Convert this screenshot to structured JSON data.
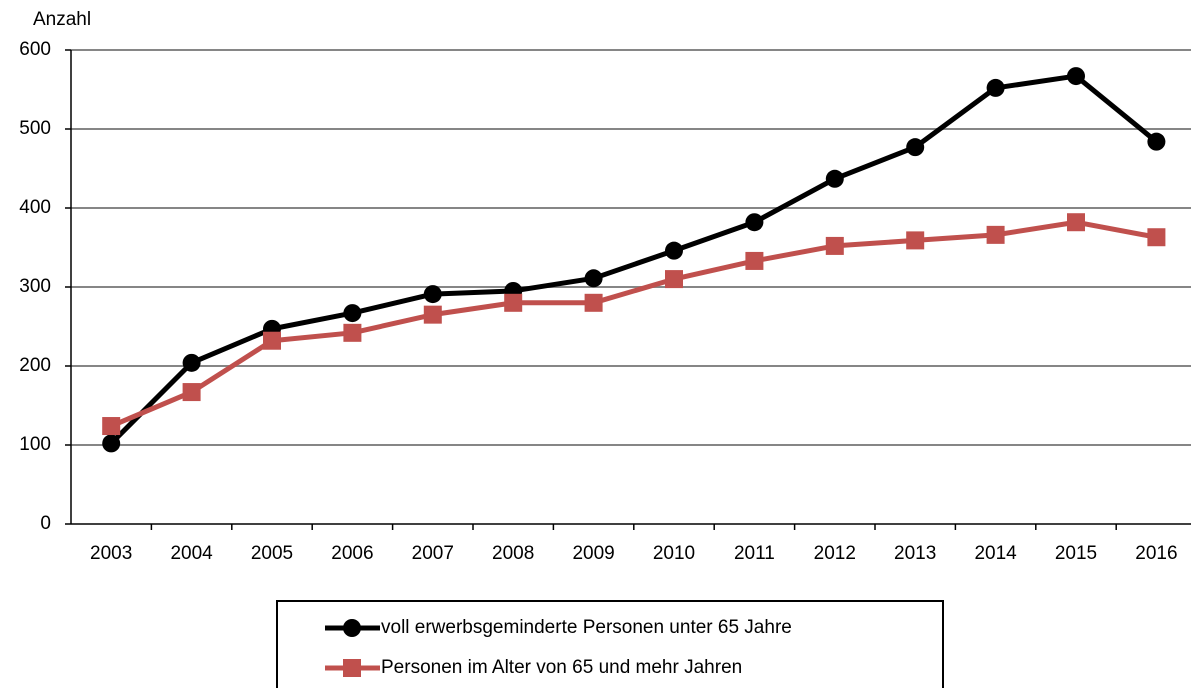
{
  "chart_data": {
    "type": "line",
    "y_label": "Anzahl",
    "categories": [
      "2003",
      "2004",
      "2005",
      "2006",
      "2007",
      "2008",
      "2009",
      "2010",
      "2011",
      "2012",
      "2013",
      "2014",
      "2015",
      "2016"
    ],
    "series": [
      {
        "name": "voll erwerbsgeminderte Personen unter 65 Jahre",
        "color": "#000000",
        "marker": "circle",
        "values": [
          102,
          204,
          247,
          267,
          291,
          295,
          311,
          346,
          382,
          437,
          477,
          552,
          567,
          484
        ]
      },
      {
        "name": "Personen im Alter von 65 und mehr Jahren",
        "color": "#c0504d",
        "marker": "square",
        "values": [
          124,
          167,
          232,
          242,
          265,
          280,
          280,
          310,
          333,
          352,
          359,
          366,
          382,
          363
        ]
      }
    ],
    "ylim": [
      0,
      600
    ],
    "yticks": [
      0,
      100,
      200,
      300,
      400,
      500,
      600
    ],
    "grid": true,
    "legend": "bottom"
  }
}
